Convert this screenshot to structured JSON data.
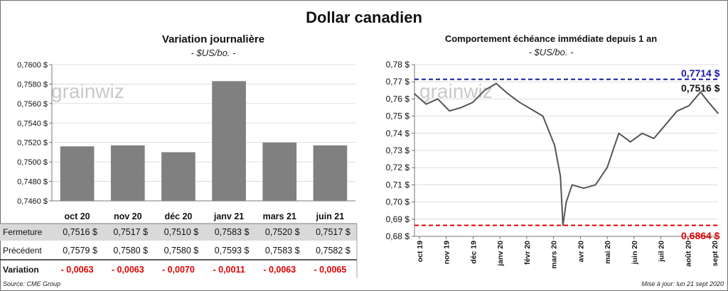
{
  "title": "Dollar canadien",
  "left": {
    "title": "Variation  journalière",
    "subtitle": "- $US/bo. -",
    "watermark": "grainwiz",
    "row_labels": [
      "Fermeture",
      "Précédent",
      "Variation"
    ],
    "closing": [
      "0,7516  $",
      "0,7517  $",
      "0,7510  $",
      "0,7583  $",
      "0,7520  $",
      "0,7517  $"
    ],
    "previous": [
      "0,7579  $",
      "0,7580  $",
      "0,7580  $",
      "0,7593  $",
      "0,7583  $",
      "0,7582  $"
    ],
    "variation": [
      "- 0,0063",
      "- 0,0063",
      "- 0,0070",
      "- 0,0011",
      "- 0,0063",
      "- 0,0065"
    ]
  },
  "right": {
    "title": "Comportement échéance immédiate depuis 1 an",
    "subtitle": "- $US/bo. -",
    "watermark": "grainwiz",
    "high_label": "0,7714  $",
    "last_label": "0,7516 $",
    "low_label": "0,6864  $"
  },
  "footer": {
    "source": "Source: CME Group",
    "updated": "Mise à jour: lun 21 sept 2020"
  },
  "colors": {
    "bar": "#808080",
    "line": "#555555",
    "high": "#1a1aa8",
    "low": "#e00000",
    "table_shade": "#d9d9d9"
  },
  "chart_data": [
    {
      "type": "bar",
      "title": "Variation  journalière",
      "subtitle": "- $US/bo. -",
      "categories": [
        "oct 20",
        "nov 20",
        "déc 20",
        "janv 21",
        "mars 21",
        "juin 21"
      ],
      "values": [
        0.7516,
        0.7517,
        0.751,
        0.7583,
        0.752,
        0.7517
      ],
      "ylim": [
        0.746,
        0.76
      ],
      "yticks": [
        "0,7460 $",
        "0,7480 $",
        "0,7500 $",
        "0,7520 $",
        "0,7540 $",
        "0,7560 $",
        "0,7580 $",
        "0,7600 $"
      ],
      "grid": true
    },
    {
      "type": "line",
      "title": "Comportement échéance immédiate depuis 1 an",
      "subtitle": "- $US/bo. -",
      "x": [
        "2019-09-23",
        "2019-10-07",
        "2019-10-21",
        "2019-11-04",
        "2019-11-18",
        "2019-12-02",
        "2019-12-16",
        "2019-12-30",
        "2020-01-13",
        "2020-01-27",
        "2020-02-10",
        "2020-02-24",
        "2020-03-09",
        "2020-03-16",
        "2020-03-19",
        "2020-03-23",
        "2020-03-30",
        "2020-04-13",
        "2020-04-27",
        "2020-05-11",
        "2020-05-25",
        "2020-06-08",
        "2020-06-22",
        "2020-07-06",
        "2020-07-20",
        "2020-08-03",
        "2020-08-17",
        "2020-08-31",
        "2020-09-08",
        "2020-09-21"
      ],
      "y": [
        0.763,
        0.757,
        0.76,
        0.753,
        0.755,
        0.758,
        0.765,
        0.769,
        0.763,
        0.758,
        0.754,
        0.75,
        0.733,
        0.715,
        0.6864,
        0.7,
        0.71,
        0.708,
        0.71,
        0.72,
        0.74,
        0.735,
        0.74,
        0.737,
        0.745,
        0.753,
        0.756,
        0.764,
        0.759,
        0.7516
      ],
      "x_ticks": [
        "oct 19",
        "nov 19",
        "déc 19",
        "janv 20",
        "févr 20",
        "mars 20",
        "avr 20",
        "mai 20",
        "juin 20",
        "juil 20",
        "août 20",
        "sept 20"
      ],
      "yticks": [
        "0,68 $",
        "0,69 $",
        "0,70 $",
        "0,71 $",
        "0,72 $",
        "0,73 $",
        "0,74 $",
        "0,75 $",
        "0,76 $",
        "0,77 $",
        "0,78 $"
      ],
      "ylim": [
        0.68,
        0.78
      ],
      "high": 0.7714,
      "low": 0.6864,
      "last": 0.7516,
      "grid": true
    }
  ]
}
